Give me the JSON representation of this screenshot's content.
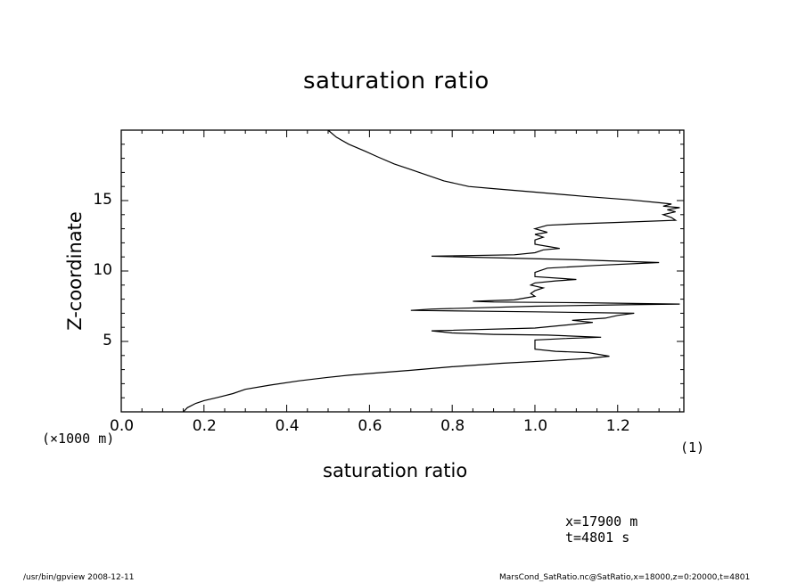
{
  "chart_data": {
    "type": "line",
    "title": "saturation ratio",
    "xlabel": "saturation ratio",
    "ylabel": "Z-coordinate",
    "y_unit_note": "(×1000 m)",
    "x_unit_note": "(1)",
    "xlim": [
      0.0,
      1.36
    ],
    "ylim": [
      0.0,
      20.0
    ],
    "x_ticks": [
      0.0,
      0.2,
      0.4,
      0.6,
      0.8,
      1.0,
      1.2
    ],
    "x_tick_labels": [
      "0.0",
      "0.2",
      "0.4",
      "0.6",
      "0.8",
      "1.0",
      "1.2"
    ],
    "y_ticks": [
      5,
      10,
      15
    ],
    "y_tick_labels": [
      "5",
      "10",
      "15"
    ],
    "grid": false,
    "line_color": "#000000",
    "series": [
      {
        "points": [
          [
            0.15,
            0.0
          ],
          [
            0.16,
            0.3
          ],
          [
            0.18,
            0.6
          ],
          [
            0.2,
            0.8
          ],
          [
            0.23,
            1.0
          ],
          [
            0.27,
            1.3
          ],
          [
            0.3,
            1.6
          ],
          [
            0.36,
            1.9
          ],
          [
            0.43,
            2.2
          ],
          [
            0.5,
            2.45
          ],
          [
            0.55,
            2.6
          ],
          [
            0.61,
            2.75
          ],
          [
            0.7,
            2.95
          ],
          [
            0.8,
            3.2
          ],
          [
            0.92,
            3.45
          ],
          [
            1.05,
            3.65
          ],
          [
            1.13,
            3.8
          ],
          [
            1.18,
            3.95
          ],
          [
            1.13,
            4.2
          ],
          [
            1.05,
            4.3
          ],
          [
            1.0,
            4.45
          ],
          [
            1.0,
            4.7
          ],
          [
            1.0,
            5.0
          ],
          [
            1.0,
            5.1
          ],
          [
            1.07,
            5.2
          ],
          [
            1.16,
            5.3
          ],
          [
            1.03,
            5.45
          ],
          [
            0.9,
            5.5
          ],
          [
            0.8,
            5.6
          ],
          [
            0.75,
            5.75
          ],
          [
            1.0,
            5.95
          ],
          [
            1.14,
            6.35
          ],
          [
            1.09,
            6.5
          ],
          [
            1.17,
            6.65
          ],
          [
            1.2,
            6.85
          ],
          [
            1.24,
            7.0
          ],
          [
            1.0,
            7.1
          ],
          [
            0.7,
            7.2
          ],
          [
            0.75,
            7.3
          ],
          [
            1.0,
            7.5
          ],
          [
            1.22,
            7.6
          ],
          [
            1.35,
            7.65
          ],
          [
            1.12,
            7.75
          ],
          [
            0.9,
            7.8
          ],
          [
            0.85,
            7.85
          ],
          [
            0.95,
            7.95
          ],
          [
            1.0,
            8.2
          ],
          [
            0.99,
            8.4
          ],
          [
            1.0,
            8.6
          ],
          [
            1.02,
            8.8
          ],
          [
            0.99,
            9.0
          ],
          [
            1.0,
            9.15
          ],
          [
            1.05,
            9.3
          ],
          [
            1.1,
            9.4
          ],
          [
            1.0,
            9.6
          ],
          [
            1.0,
            9.9
          ],
          [
            1.03,
            10.2
          ],
          [
            1.15,
            10.4
          ],
          [
            1.3,
            10.6
          ],
          [
            1.1,
            10.8
          ],
          [
            0.75,
            11.05
          ],
          [
            0.95,
            11.15
          ],
          [
            1.0,
            11.3
          ],
          [
            1.02,
            11.5
          ],
          [
            1.06,
            11.6
          ],
          [
            1.04,
            11.7
          ],
          [
            1.0,
            11.9
          ],
          [
            1.0,
            12.2
          ],
          [
            1.02,
            12.4
          ],
          [
            1.0,
            12.6
          ],
          [
            1.03,
            12.75
          ],
          [
            1.0,
            13.0
          ],
          [
            1.03,
            13.25
          ],
          [
            1.1,
            13.35
          ],
          [
            1.2,
            13.45
          ],
          [
            1.34,
            13.6
          ],
          [
            1.33,
            13.8
          ],
          [
            1.31,
            14.0
          ],
          [
            1.34,
            14.2
          ],
          [
            1.32,
            14.35
          ],
          [
            1.35,
            14.5
          ],
          [
            1.31,
            14.6
          ],
          [
            1.33,
            14.75
          ],
          [
            1.3,
            14.85
          ],
          [
            1.23,
            15.05
          ],
          [
            1.12,
            15.3
          ],
          [
            1.0,
            15.6
          ],
          [
            0.9,
            15.85
          ],
          [
            0.84,
            16.0
          ],
          [
            0.78,
            16.4
          ],
          [
            0.74,
            16.8
          ],
          [
            0.7,
            17.2
          ],
          [
            0.66,
            17.6
          ],
          [
            0.62,
            18.1
          ],
          [
            0.59,
            18.5
          ],
          [
            0.55,
            19.0
          ],
          [
            0.52,
            19.5
          ],
          [
            0.5,
            20.0
          ]
        ]
      }
    ]
  },
  "annotations": {
    "x_position": "x=17900  m",
    "time": "t=4801  s"
  },
  "footer": {
    "left": "/usr/bin/gpview   2008-12-11",
    "right": "MarsCond_SatRatio.nc@SatRatio,x=18000,z=0:20000,t=4801"
  }
}
